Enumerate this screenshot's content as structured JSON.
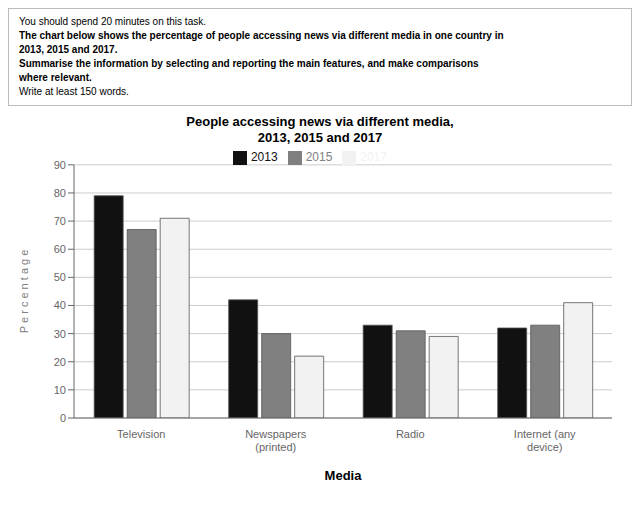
{
  "chart_data": {
    "type": "bar",
    "title": "People accessing news via different media,\n2013, 2015 and 2017",
    "xlabel": "Media",
    "ylabel": "P e r c e n t a g e",
    "categories": [
      "Television",
      "Newspapers\n(printed)",
      "Radio",
      "Internet (any\ndevice)"
    ],
    "series": [
      {
        "name": "2013",
        "color": "#111111",
        "values": [
          79,
          42,
          33,
          32
        ]
      },
      {
        "name": "2015",
        "color": "#808080",
        "values": [
          67,
          30,
          31,
          33
        ]
      },
      {
        "name": "2017",
        "color": "#f2f2f2",
        "values": [
          71,
          22,
          29,
          41
        ]
      }
    ],
    "ylim": [
      0,
      90
    ],
    "yticks": [
      0,
      10,
      20,
      30,
      40,
      50,
      60,
      70,
      80,
      90
    ],
    "grid": true,
    "legend": "top",
    "annotations": [
      "You should spend 20 minutes on this task.",
      "The chart below shows the percentage of people accessing news via different media in one country in",
      "2013, 2015 and 2017.",
      "Summarise the information by selecting and reporting the main features, and make comparisons",
      "where relevant.",
      "Write at least 150 words."
    ]
  }
}
